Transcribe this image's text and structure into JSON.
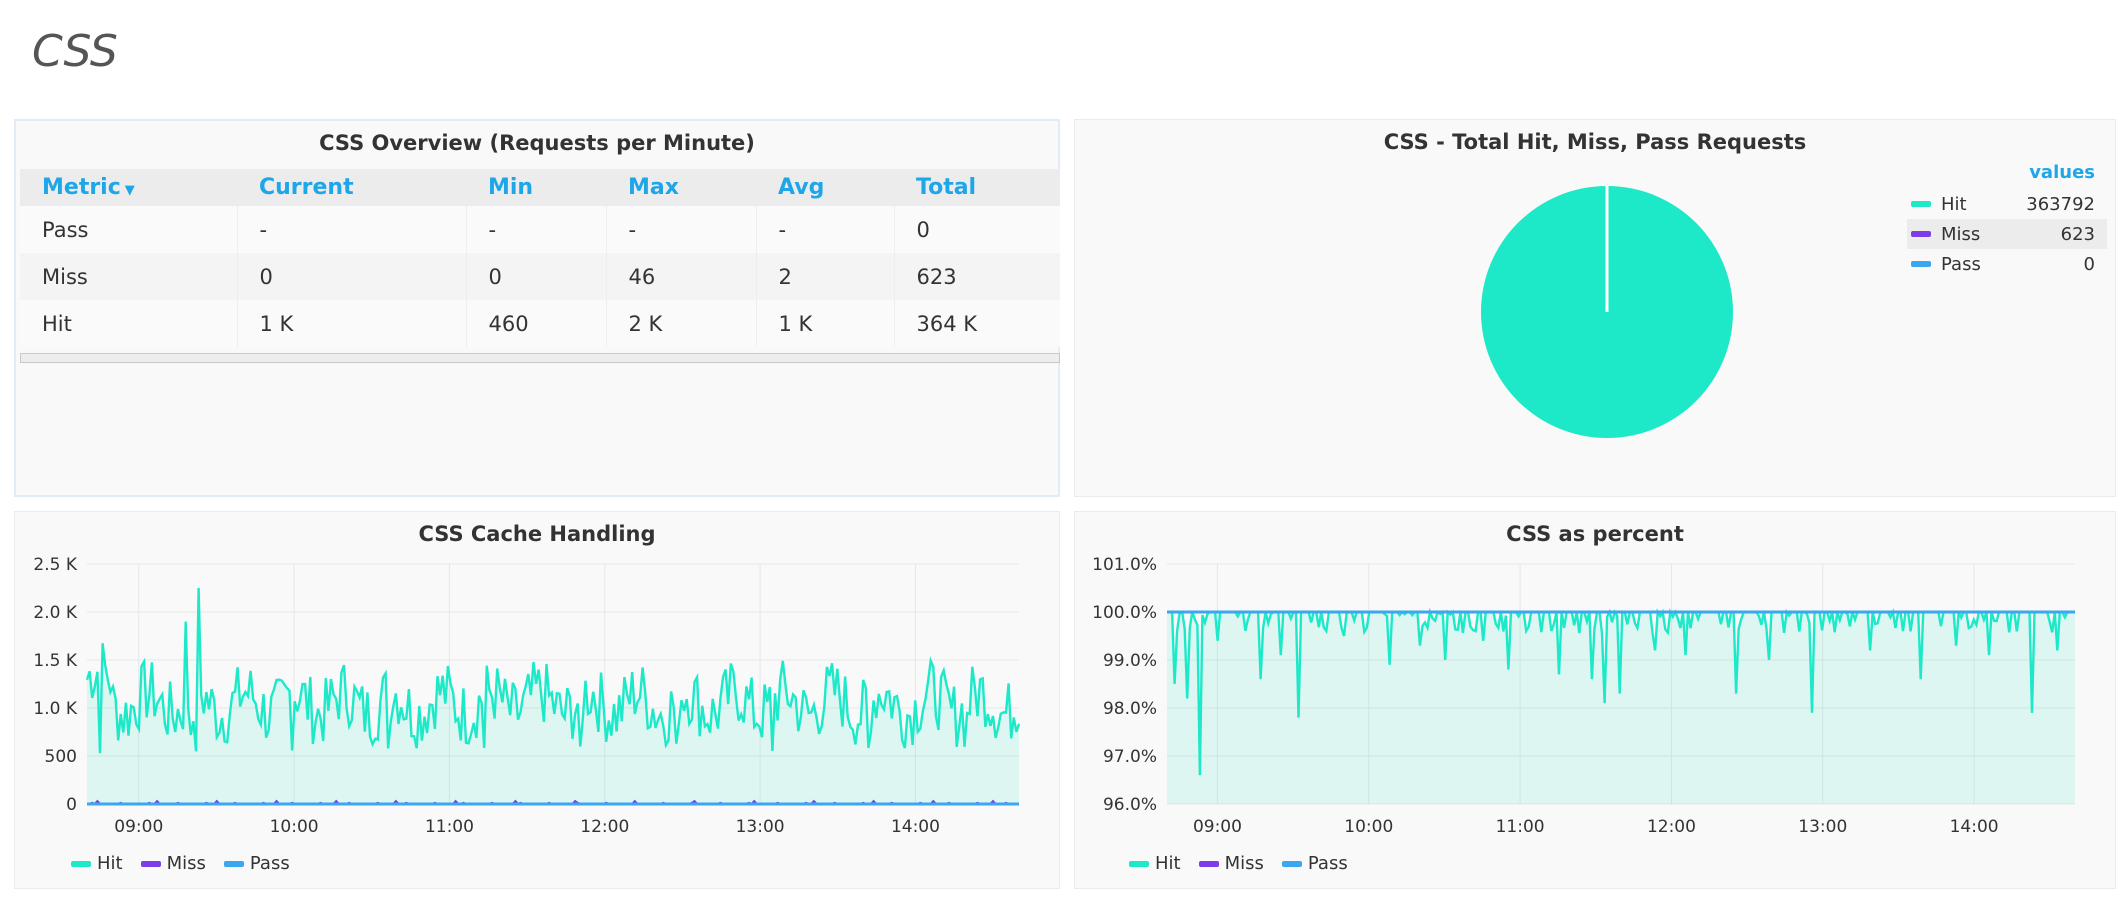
{
  "page": {
    "title": "CSS"
  },
  "colors": {
    "hit": "#1de9c9",
    "miss": "#7c3ce8",
    "pass": "#3aa7f0",
    "accent": "#1fa6e8"
  },
  "overview": {
    "title": "CSS Overview (Requests per Minute)",
    "columns": [
      "Metric",
      "Current",
      "Min",
      "Max",
      "Avg",
      "Total"
    ],
    "rows": [
      [
        "Pass",
        "-",
        "-",
        "-",
        "-",
        "0"
      ],
      [
        "Miss",
        "0",
        "0",
        "46",
        "2",
        "623"
      ],
      [
        "Hit",
        "1 K",
        "460",
        "2 K",
        "1 K",
        "364 K"
      ]
    ]
  },
  "pie": {
    "title": "CSS - Total Hit, Miss, Pass Requests",
    "legend_header": "values",
    "items": [
      {
        "label": "Hit",
        "value": "363792",
        "color": "#1de9c9"
      },
      {
        "label": "Miss",
        "value": "623",
        "color": "#7c3ce8"
      },
      {
        "label": "Pass",
        "value": "0",
        "color": "#3aa7f0"
      }
    ]
  },
  "cache_chart": {
    "title": "CSS Cache Handling"
  },
  "percent_chart": {
    "title": "CSS as percent"
  },
  "legend": {
    "hit": "Hit",
    "miss": "Miss",
    "pass": "Pass"
  },
  "chart_data": [
    {
      "type": "area",
      "title": "CSS Cache Handling",
      "x_ticks": [
        "09:00",
        "10:00",
        "11:00",
        "12:00",
        "13:00",
        "14:00"
      ],
      "y_ticks": [
        "0",
        "500",
        "1.0 K",
        "1.5 K",
        "2.0 K",
        "2.5 K"
      ],
      "ylim": [
        0,
        2500
      ],
      "x_range": [
        "08:40",
        "14:40"
      ],
      "series": [
        {
          "name": "Hit",
          "approx_mean": 1050,
          "approx_min": 460,
          "approx_max": 2250
        },
        {
          "name": "Miss",
          "approx_mean": 2,
          "approx_max": 46
        },
        {
          "name": "Pass",
          "approx_mean": 0
        }
      ]
    },
    {
      "type": "area",
      "title": "CSS as percent",
      "x_ticks": [
        "09:00",
        "10:00",
        "11:00",
        "12:00",
        "13:00",
        "14:00"
      ],
      "y_ticks": [
        "96.0%",
        "97.0%",
        "98.0%",
        "99.0%",
        "100.0%",
        "101.0%"
      ],
      "ylim": [
        96,
        101
      ],
      "x_range": [
        "08:40",
        "14:40"
      ],
      "series": [
        {
          "name": "Hit",
          "approx_mean": 99.8,
          "approx_min": 96.6
        },
        {
          "name": "Pass",
          "approx_mean": 100.0
        }
      ]
    }
  ]
}
